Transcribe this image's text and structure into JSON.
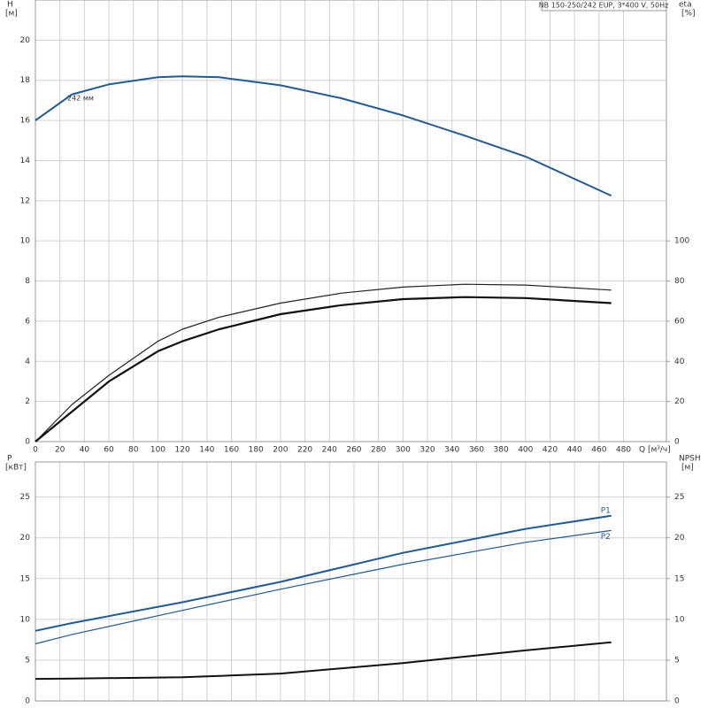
{
  "chart_data": [
    {
      "type": "line",
      "title": "NB 150-250/242 EUP, 3*400 V, 50Hz",
      "y_label": "H",
      "y_unit": "[м]",
      "y2_label": "eta",
      "y2_unit": "[%]",
      "x_label": "Q [м³/ч]",
      "annotation": "242 мм",
      "x": [
        0,
        30,
        60,
        100,
        120,
        150,
        200,
        250,
        300,
        350,
        400,
        470
      ],
      "xlim": [
        0,
        515
      ],
      "xticks": [
        0,
        20,
        40,
        60,
        80,
        100,
        120,
        140,
        160,
        180,
        200,
        220,
        240,
        260,
        280,
        300,
        320,
        340,
        360,
        380,
        400,
        420,
        440,
        460,
        480
      ],
      "ylim": [
        0,
        22
      ],
      "yticks": [
        0,
        2,
        4,
        6,
        8,
        10,
        12,
        14,
        16,
        18,
        20
      ],
      "y2lim": [
        0,
        220
      ],
      "y2ticks": [
        0,
        20,
        40,
        60,
        80,
        100
      ],
      "grid": true,
      "series": [
        {
          "color": "#1f5a96",
          "line_width": 2,
          "values": [
            16.0,
            17.3,
            17.8,
            18.15,
            18.2,
            18.15,
            17.75,
            17.1,
            16.25,
            15.25,
            14.2,
            12.25
          ]
        },
        {
          "color": "#222222",
          "line_width": 1.2,
          "axis": "y2",
          "values": [
            0,
            18.5,
            33,
            50,
            56,
            62,
            69,
            74,
            77,
            78.4,
            78,
            75.5
          ]
        },
        {
          "color": "#111111",
          "line_width": 2.2,
          "axis": "y2",
          "values": [
            0,
            15,
            30,
            45,
            50,
            56,
            63.5,
            68,
            71,
            72,
            71.5,
            69
          ]
        }
      ]
    },
    {
      "type": "line",
      "y_label": "P",
      "y_unit": "[кВт]",
      "y2_label": "NPSH",
      "y2_unit": "[м]",
      "x": [
        0,
        30,
        120,
        200,
        300,
        400,
        470
      ],
      "xlim": [
        0,
        515
      ],
      "xticks": [
        0,
        20,
        40,
        60,
        80,
        100,
        120,
        140,
        160,
        180,
        200,
        220,
        240,
        260,
        280,
        300,
        320,
        340,
        360,
        380,
        400,
        420,
        440,
        460,
        480
      ],
      "ylim": [
        0,
        29.3
      ],
      "yticks": [
        0,
        5,
        10,
        15,
        20,
        25
      ],
      "y2lim": [
        0,
        29.3
      ],
      "y2ticks": [
        0,
        5,
        10,
        15,
        20,
        25
      ],
      "grid": true,
      "series": [
        {
          "name": "P1",
          "color": "#1f5a96",
          "line_width": 2,
          "values": [
            8.6,
            9.55,
            12.1,
            14.6,
            18.15,
            21.1,
            22.7
          ]
        },
        {
          "name": "P2",
          "color": "#1f5a96",
          "line_width": 1.2,
          "values": [
            7.0,
            8.15,
            11.1,
            13.7,
            16.75,
            19.45,
            20.9
          ]
        },
        {
          "color": "#111111",
          "line_width": 2,
          "axis": "y2",
          "values": [
            2.7,
            2.75,
            2.9,
            3.35,
            4.65,
            6.2,
            7.2
          ]
        }
      ]
    }
  ]
}
